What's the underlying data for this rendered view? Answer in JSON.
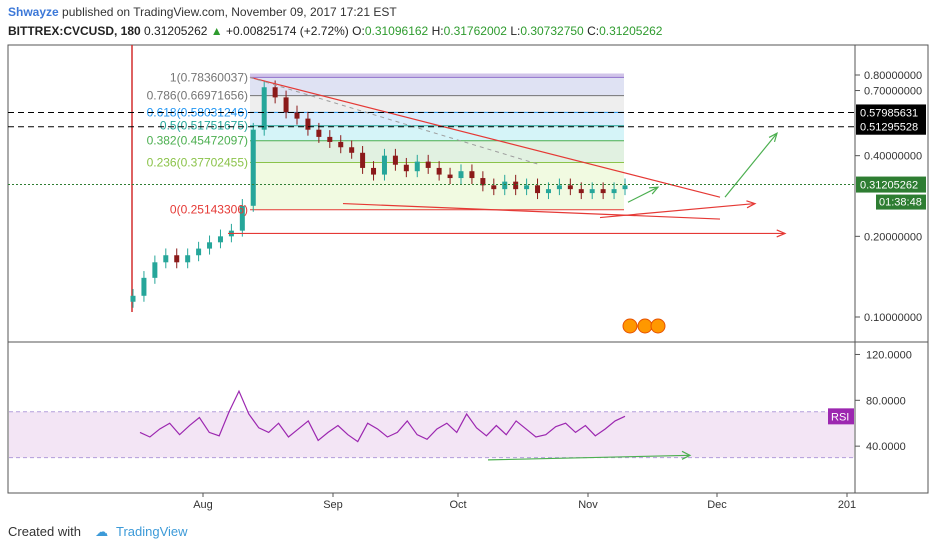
{
  "header": {
    "author": "Shwayze",
    "published_text": "published on TradingView.com, November 09, 2017 17:21 EST",
    "symbol": "BITTREX:CVCUSD, 180",
    "last": "0.31205262",
    "change": "+0.00825174 (+2.72%)",
    "open_label": "O:",
    "open": "0.31096162",
    "high_label": "H:",
    "high": "0.31762002",
    "low_label": "L:",
    "low": "0.30732750",
    "close_label": "C:",
    "close": "0.31205262"
  },
  "footer": {
    "created_with": "Created with",
    "brand": "TradingView"
  },
  "colors": {
    "candle_up": "#26a69a",
    "candle_down": "#8b1a1a",
    "trend": "#e53935",
    "arrow_green": "#4caf50",
    "rsi_line": "#9c27b0",
    "rsi_band": "#f3e5f5",
    "price_tag": "#000000",
    "current_tag": "#2e7d32"
  },
  "chart_data": [
    {
      "type": "candlestick",
      "x_axis_labels": [
        "Aug",
        "Sep",
        "Oct",
        "Nov",
        "Dec",
        "201"
      ],
      "y_axis_labels": [
        "0.80000000",
        "0.70000000",
        "0.40000000",
        "0.20000000",
        "0.10000000"
      ],
      "scale": "log",
      "ylim": [
        0.085,
        0.86
      ],
      "close_series": [
        0.12,
        0.14,
        0.16,
        0.17,
        0.16,
        0.17,
        0.18,
        0.19,
        0.2,
        0.21,
        0.26,
        0.5,
        0.72,
        0.66,
        0.58,
        0.55,
        0.5,
        0.47,
        0.45,
        0.43,
        0.41,
        0.36,
        0.34,
        0.4,
        0.37,
        0.35,
        0.38,
        0.36,
        0.34,
        0.33,
        0.35,
        0.33,
        0.31,
        0.3,
        0.32,
        0.3,
        0.31,
        0.29,
        0.3,
        0.31,
        0.3,
        0.29,
        0.3,
        0.29,
        0.3,
        0.31
      ],
      "fib_levels": [
        {
          "ratio": "1",
          "value": "0.78360037"
        },
        {
          "ratio": "0.786",
          "value": "0.66971656"
        },
        {
          "ratio": "0.618",
          "value": "0.58031246"
        },
        {
          "ratio": "0.5",
          "value": "0.51751675"
        },
        {
          "ratio": "0.382",
          "value": "0.45472097"
        },
        {
          "ratio": "0.236",
          "value": "0.37702455"
        },
        {
          "ratio": "0",
          "value": "0.25143306"
        }
      ],
      "horizontal_lines": [
        "0.57985631",
        "0.51295528"
      ],
      "current_price": "0.31205262",
      "countdown": "01:38:48"
    },
    {
      "type": "line",
      "name": "RSI",
      "y_axis_labels": [
        "120.0000",
        "80.0000",
        "40.0000"
      ],
      "ylim": [
        0,
        130
      ],
      "bands": [
        30,
        70
      ],
      "values": [
        52,
        48,
        55,
        60,
        50,
        58,
        65,
        52,
        49,
        70,
        88,
        68,
        56,
        52,
        60,
        48,
        55,
        62,
        45,
        52,
        58,
        50,
        44,
        60,
        55,
        48,
        52,
        62,
        50,
        46,
        55,
        60,
        52,
        68,
        56,
        49,
        58,
        50,
        62,
        55,
        48,
        50,
        57,
        60,
        52,
        58,
        49,
        55,
        62,
        66
      ]
    }
  ]
}
